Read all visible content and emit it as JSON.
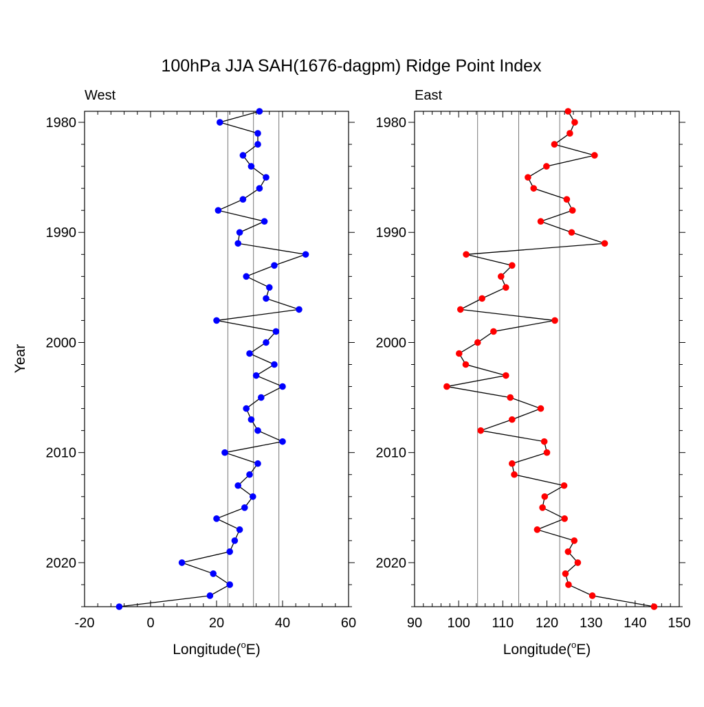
{
  "chart_data": {
    "type": "line",
    "title": "100hPa JJA SAH(1676-dagpm) Ridge Point Index",
    "ylabel": "Year",
    "y": [
      1979,
      1980,
      1981,
      1982,
      1983,
      1984,
      1985,
      1986,
      1987,
      1988,
      1989,
      1990,
      1991,
      1992,
      1993,
      1994,
      1995,
      1996,
      1997,
      1998,
      1999,
      2000,
      2001,
      2002,
      2003,
      2004,
      2005,
      2006,
      2007,
      2008,
      2009,
      2010,
      2011,
      2012,
      2013,
      2014,
      2015,
      2016,
      2017,
      2018,
      2019,
      2020,
      2021,
      2022,
      2023,
      2024
    ],
    "ylim": [
      1979,
      2024
    ],
    "y_reversed": true,
    "yticks": [
      1980,
      1990,
      2000,
      2010,
      2020
    ],
    "panels": [
      {
        "label": "West",
        "xlabel_main": "Longitude(",
        "xlabel_sup": "o",
        "xlabel_end": "E)",
        "xlim": [
          -20,
          60
        ],
        "xticks": [
          -20,
          0,
          20,
          40,
          60
        ],
        "reference_lines": [
          23.4,
          31.2,
          38.9
        ],
        "series": [
          {
            "color": "#0000ff",
            "values": [
              33,
              21,
              32.5,
              32.5,
              28,
              30.5,
              35,
              33,
              28,
              20.5,
              34.5,
              27,
              26.5,
              47,
              37.5,
              29,
              36,
              35,
              45,
              20,
              38,
              35,
              30,
              37.5,
              32,
              40,
              33.5,
              29,
              30.5,
              32.5,
              40,
              22.5,
              32.5,
              30,
              26.5,
              31,
              28.5,
              20,
              27,
              25.5,
              24,
              9.5,
              19,
              24,
              18,
              -9.5
            ]
          }
        ]
      },
      {
        "label": "East",
        "xlabel_main": "Longitude(",
        "xlabel_sup": "o",
        "xlabel_end": "E)",
        "xlim": [
          90,
          150
        ],
        "xticks": [
          90,
          100,
          110,
          120,
          130,
          140,
          150
        ],
        "reference_lines": [
          104.3,
          113.6,
          122.9
        ],
        "series": [
          {
            "color": "#ff0000",
            "values": [
              124.8,
              126.3,
              125.2,
              121.7,
              130.8,
              119.9,
              115.7,
              117,
              124.5,
              125.8,
              118.6,
              125.6,
              133.1,
              101.7,
              112.1,
              109.6,
              110.7,
              105.3,
              100.4,
              121.8,
              107.9,
              104.3,
              100.1,
              101.6,
              110.7,
              97.3,
              111.7,
              118.6,
              112.1,
              105,
              119.4,
              120,
              112.1,
              112.6,
              123.9,
              119.5,
              119,
              124,
              117.8,
              126.2,
              124.8,
              127,
              124.2,
              124.9,
              130.3,
              144.3
            ]
          }
        ]
      }
    ]
  }
}
